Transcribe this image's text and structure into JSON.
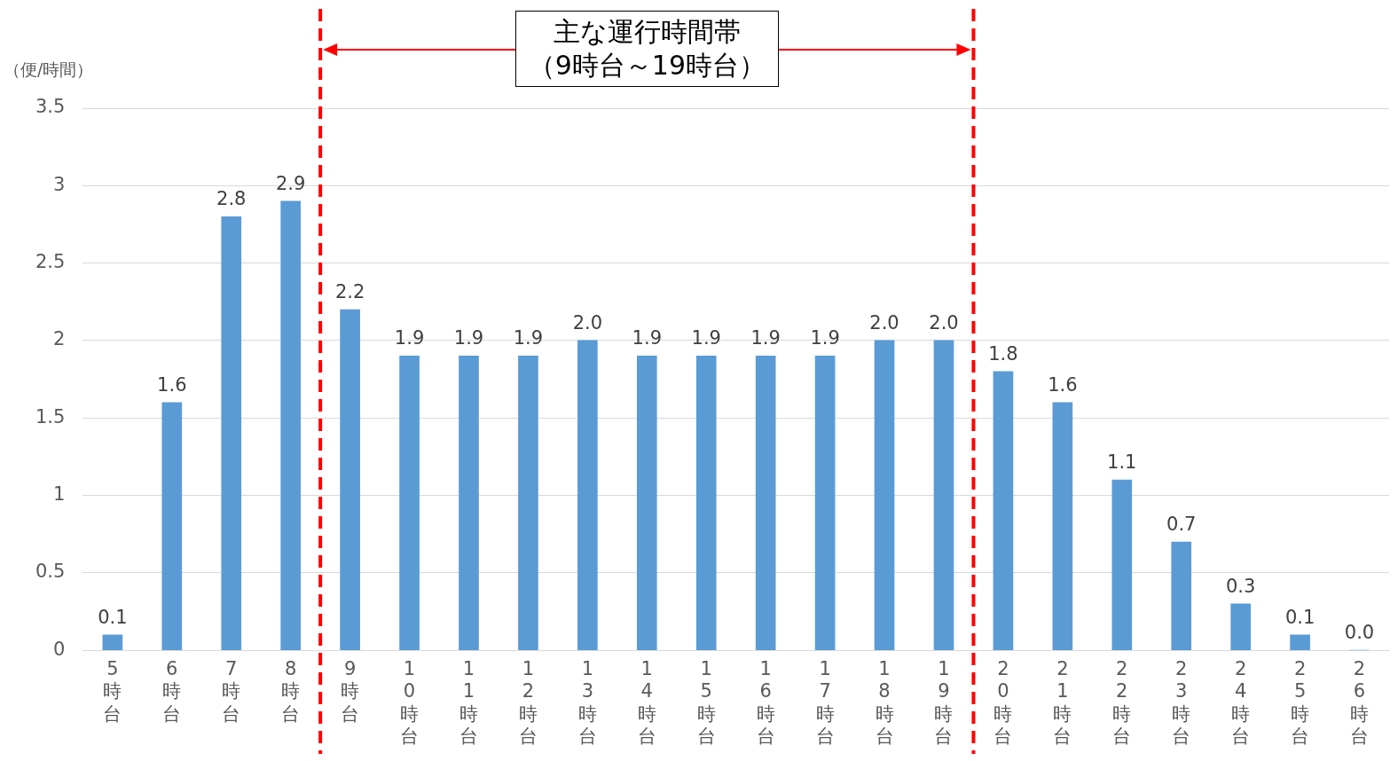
{
  "chart_data": {
    "type": "bar",
    "ylabel": "（便/時間）",
    "x": [
      5,
      6,
      7,
      8,
      9,
      10,
      11,
      12,
      13,
      14,
      15,
      16,
      17,
      18,
      19,
      20,
      21,
      22,
      23,
      24,
      25,
      26
    ],
    "xlim": [
      4.5,
      26.5
    ],
    "xticks": [
      {
        "value": 5,
        "label": "5時台"
      },
      {
        "value": 6,
        "label": "6時台"
      },
      {
        "value": 7,
        "label": "7時台"
      },
      {
        "value": 8,
        "label": "8時台"
      },
      {
        "value": 9,
        "label": "9時台"
      },
      {
        "value": 10,
        "label": "10時台"
      },
      {
        "value": 11,
        "label": "11時台"
      },
      {
        "value": 12,
        "label": "12時台"
      },
      {
        "value": 13,
        "label": "13時台"
      },
      {
        "value": 14,
        "label": "14時台"
      },
      {
        "value": 15,
        "label": "15時台"
      },
      {
        "value": 16,
        "label": "16時台"
      },
      {
        "value": 17,
        "label": "17時台"
      },
      {
        "value": 18,
        "label": "18時台"
      },
      {
        "value": 19,
        "label": "19時台"
      },
      {
        "value": 20,
        "label": "20時台"
      },
      {
        "value": 21,
        "label": "21時台"
      },
      {
        "value": 22,
        "label": "22時台"
      },
      {
        "value": 23,
        "label": "23時台"
      },
      {
        "value": 24,
        "label": "24時台"
      },
      {
        "value": 25,
        "label": "25時台"
      },
      {
        "value": 26,
        "label": "26時台"
      }
    ],
    "values": [
      0.1,
      1.6,
      2.8,
      2.9,
      2.2,
      1.9,
      1.9,
      1.9,
      2.0,
      1.9,
      1.9,
      1.9,
      1.9,
      2.0,
      2.0,
      1.8,
      1.6,
      1.1,
      0.7,
      0.3,
      0.1,
      0.0
    ],
    "value_labels": [
      "0.1",
      "1.6",
      "2.8",
      "2.9",
      "2.2",
      "1.9",
      "1.9",
      "1.9",
      "2.0",
      "1.9",
      "1.9",
      "1.9",
      "1.9",
      "2.0",
      "2.0",
      "1.8",
      "1.6",
      "1.1",
      "0.7",
      "0.3",
      "0.1",
      "0.0"
    ],
    "color": "#5b9bd5",
    "ylim": [
      0,
      3.5
    ],
    "yticks": [
      0,
      0.5,
      1,
      1.5,
      2,
      2.5,
      3,
      3.5
    ],
    "grid": "y",
    "legend": false,
    "ref_lines": [
      {
        "axis": "x",
        "value": 8.5,
        "color": "#ff0000",
        "line_style": "dashed"
      },
      {
        "axis": "x",
        "value": 19.5,
        "color": "#ff0000",
        "line_style": "dashed"
      }
    ],
    "annotations": [
      "主な運行時間帯（9時台～19時台）"
    ]
  }
}
